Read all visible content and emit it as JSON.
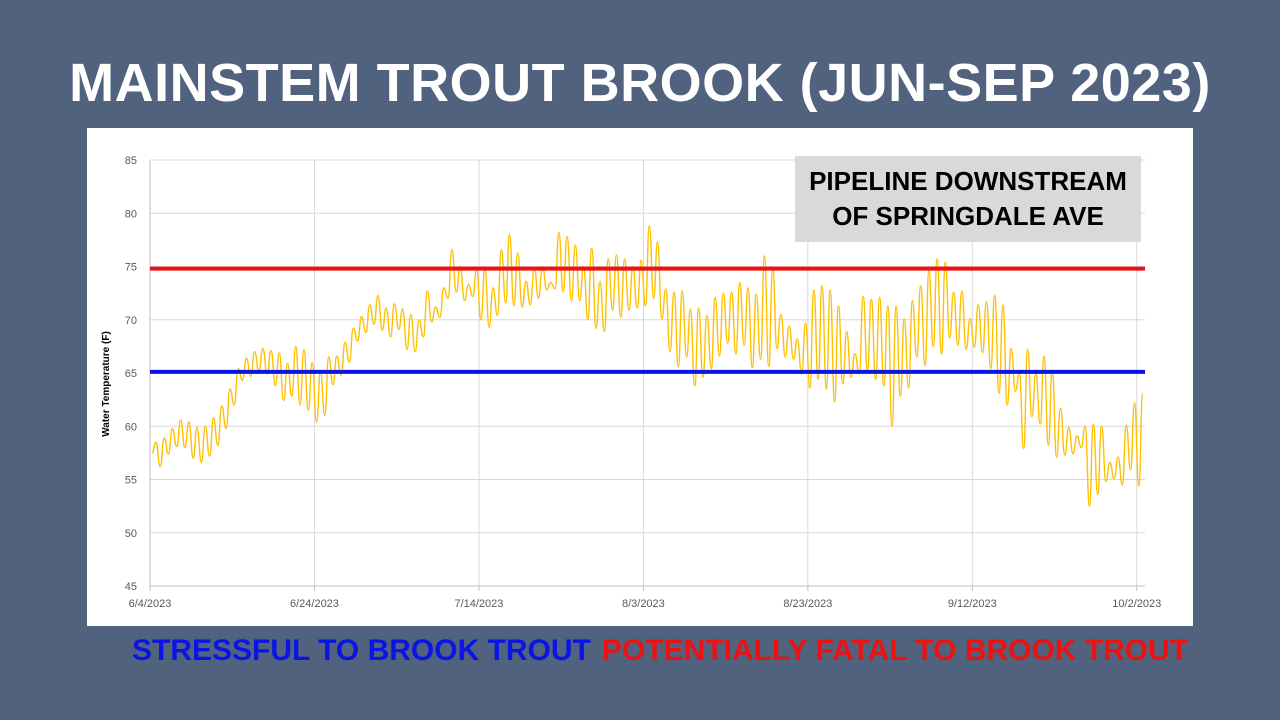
{
  "slide": {
    "title": "MAINSTEM TROUT BROOK (JUN-SEP 2023)",
    "site_label_line1": "PIPELINE DOWNSTREAM",
    "site_label_line2": "OF SPRINGDALE AVE",
    "legend_stressful": "STRESSFUL TO BROOK TROUT",
    "legend_fatal": "POTENTIALLY FATAL TO BROOK TROUT"
  },
  "colors": {
    "background": "#50627d",
    "series": "#ffc000",
    "stress_line": "#0a14e6",
    "fatal_line": "#ee1111",
    "grid": "#d9d9d9"
  },
  "chart_data": {
    "type": "line",
    "title": "",
    "xlabel": "",
    "ylabel": "Water Temperature (F)",
    "ylim": [
      45,
      85
    ],
    "yticks": [
      45,
      50,
      55,
      60,
      65,
      70,
      75,
      80,
      85
    ],
    "x_range": [
      "6/4/2023",
      "10/3/2023"
    ],
    "xticks": [
      "6/4/2023",
      "6/24/2023",
      "7/14/2023",
      "8/3/2023",
      "8/23/2023",
      "9/12/2023",
      "10/2/2023"
    ],
    "grid": true,
    "thresholds": [
      {
        "name": "STRESSFUL TO BROOK TROUT",
        "value": 65.1,
        "color": "#0a14e6"
      },
      {
        "name": "POTENTIALLY FATAL TO BROOK TROUT",
        "value": 74.8,
        "color": "#ee1111"
      }
    ],
    "series": [
      {
        "color": "#ffc000",
        "note_daily": "daily [min, max] water temperature",
        "x": [
          "6/4/2023",
          "6/5/2023",
          "6/6/2023",
          "6/7/2023",
          "6/8/2023",
          "6/9/2023",
          "6/10/2023",
          "6/11/2023",
          "6/12/2023",
          "6/13/2023",
          "6/14/2023",
          "6/15/2023",
          "6/16/2023",
          "6/17/2023",
          "6/18/2023",
          "6/19/2023",
          "6/20/2023",
          "6/21/2023",
          "6/22/2023",
          "6/23/2023",
          "6/24/2023",
          "6/25/2023",
          "6/26/2023",
          "6/27/2023",
          "6/28/2023",
          "6/29/2023",
          "6/30/2023",
          "7/1/2023",
          "7/2/2023",
          "7/3/2023",
          "7/4/2023",
          "7/5/2023",
          "7/6/2023",
          "7/7/2023",
          "7/8/2023",
          "7/9/2023",
          "7/10/2023",
          "7/11/2023",
          "7/12/2023",
          "7/13/2023",
          "7/14/2023",
          "7/15/2023",
          "7/16/2023",
          "7/17/2023",
          "7/18/2023",
          "7/19/2023",
          "7/20/2023",
          "7/21/2023",
          "7/22/2023",
          "7/23/2023",
          "7/24/2023",
          "7/25/2023",
          "7/26/2023",
          "7/27/2023",
          "7/28/2023",
          "7/29/2023",
          "7/30/2023",
          "7/31/2023",
          "8/1/2023",
          "8/2/2023",
          "8/3/2023",
          "8/4/2023",
          "8/5/2023",
          "8/6/2023",
          "8/7/2023",
          "8/8/2023",
          "8/9/2023",
          "8/10/2023",
          "8/11/2023",
          "8/12/2023",
          "8/13/2023",
          "8/14/2023",
          "8/15/2023",
          "8/16/2023",
          "8/17/2023",
          "8/18/2023",
          "8/19/2023",
          "8/20/2023",
          "8/21/2023",
          "8/22/2023",
          "8/23/2023",
          "8/24/2023",
          "8/25/2023",
          "8/26/2023",
          "8/27/2023",
          "8/28/2023",
          "8/29/2023",
          "8/30/2023",
          "8/31/2023",
          "9/1/2023",
          "9/2/2023",
          "9/3/2023",
          "9/4/2023",
          "9/5/2023",
          "9/6/2023",
          "9/7/2023",
          "9/8/2023",
          "9/9/2023",
          "9/10/2023",
          "9/11/2023",
          "9/12/2023",
          "9/13/2023",
          "9/14/2023",
          "9/15/2023",
          "9/16/2023",
          "9/17/2023",
          "9/18/2023",
          "9/19/2023",
          "9/20/2023",
          "9/21/2023",
          "9/22/2023",
          "9/23/2023",
          "9/24/2023",
          "9/25/2023",
          "9/26/2023",
          "9/27/2023",
          "9/28/2023",
          "9/29/2023",
          "9/30/2023",
          "10/1/2023",
          "10/2/2023"
        ],
        "y_minmax": [
          [
            57.5,
            58.5
          ],
          [
            56.2,
            58.9
          ],
          [
            57.4,
            59.8
          ],
          [
            58.1,
            60.6
          ],
          [
            58.0,
            60.4
          ],
          [
            57.0,
            59.9
          ],
          [
            56.6,
            60.0
          ],
          [
            57.2,
            60.8
          ],
          [
            58.2,
            61.9
          ],
          [
            59.8,
            63.5
          ],
          [
            62.0,
            65.4
          ],
          [
            64.3,
            66.4
          ],
          [
            64.7,
            67.0
          ],
          [
            65.1,
            67.3
          ],
          [
            64.9,
            67.1
          ],
          [
            63.8,
            66.9
          ],
          [
            62.4,
            65.9
          ],
          [
            62.8,
            67.5
          ],
          [
            62.0,
            67.2
          ],
          [
            61.5,
            66.0
          ],
          [
            60.4,
            65.1
          ],
          [
            61.0,
            66.5
          ],
          [
            63.9,
            66.6
          ],
          [
            64.8,
            67.9
          ],
          [
            66.0,
            69.2
          ],
          [
            68.0,
            70.3
          ],
          [
            68.8,
            71.4
          ],
          [
            69.6,
            72.3
          ],
          [
            69.0,
            71.1
          ],
          [
            68.4,
            71.5
          ],
          [
            69.1,
            71.0
          ],
          [
            67.2,
            70.5
          ],
          [
            67.0,
            70.0
          ],
          [
            68.4,
            72.7
          ],
          [
            69.8,
            71.2
          ],
          [
            70.2,
            73.0
          ],
          [
            72.0,
            76.6
          ],
          [
            72.6,
            75.0
          ],
          [
            71.8,
            73.3
          ],
          [
            72.2,
            74.7
          ],
          [
            70.0,
            74.9
          ],
          [
            69.3,
            73.0
          ],
          [
            70.4,
            76.6
          ],
          [
            71.6,
            78.0
          ],
          [
            71.3,
            76.3
          ],
          [
            71.2,
            73.6
          ],
          [
            71.4,
            74.9
          ],
          [
            72.0,
            75.0
          ],
          [
            72.8,
            73.5
          ],
          [
            72.9,
            78.2
          ],
          [
            72.6,
            77.8
          ],
          [
            71.8,
            77.0
          ],
          [
            71.8,
            75.0
          ],
          [
            70.0,
            76.7
          ],
          [
            69.2,
            73.6
          ],
          [
            68.9,
            75.7
          ],
          [
            70.9,
            76.1
          ],
          [
            70.2,
            75.7
          ],
          [
            70.9,
            75.0
          ],
          [
            71.1,
            75.6
          ],
          [
            71.3,
            78.8
          ],
          [
            72.0,
            77.3
          ],
          [
            70.1,
            72.9
          ],
          [
            67.0,
            72.6
          ],
          [
            65.6,
            72.7
          ],
          [
            66.5,
            71.0
          ],
          [
            63.8,
            71.1
          ],
          [
            64.6,
            70.4
          ],
          [
            65.4,
            72.1
          ],
          [
            66.6,
            72.5
          ],
          [
            67.8,
            72.6
          ],
          [
            66.8,
            73.5
          ],
          [
            67.6,
            73.0
          ],
          [
            65.5,
            72.4
          ],
          [
            66.3,
            76.0
          ],
          [
            65.6,
            74.8
          ],
          [
            67.3,
            70.5
          ],
          [
            66.5,
            69.4
          ],
          [
            66.3,
            68.2
          ],
          [
            64.9,
            69.7
          ],
          [
            63.6,
            72.8
          ],
          [
            64.4,
            73.2
          ],
          [
            63.5,
            72.8
          ],
          [
            62.3,
            71.3
          ],
          [
            64.0,
            68.9
          ],
          [
            64.6,
            66.8
          ],
          [
            64.9,
            72.2
          ],
          [
            65.3,
            71.9
          ],
          [
            64.4,
            72.1
          ],
          [
            63.8,
            71.3
          ],
          [
            60.0,
            71.3
          ],
          [
            62.8,
            70.1
          ],
          [
            63.6,
            71.8
          ],
          [
            66.5,
            73.2
          ],
          [
            65.7,
            74.6
          ],
          [
            67.5,
            75.7
          ],
          [
            66.8,
            75.4
          ],
          [
            68.3,
            72.6
          ],
          [
            67.6,
            72.7
          ],
          [
            67.2,
            70.1
          ],
          [
            67.4,
            71.4
          ],
          [
            66.9,
            71.7
          ],
          [
            65.4,
            72.3
          ],
          [
            63.1,
            71.4
          ],
          [
            62.0,
            67.3
          ],
          [
            63.3,
            65.0
          ],
          [
            57.9,
            67.2
          ],
          [
            60.9,
            65.0
          ],
          [
            60.2,
            66.6
          ],
          [
            58.2,
            65.3
          ],
          [
            57.1,
            61.7
          ],
          [
            57.3,
            59.9
          ],
          [
            57.4,
            59.1
          ],
          [
            58.0,
            60.0
          ],
          [
            52.5,
            60.2
          ],
          [
            53.6,
            60.0
          ],
          [
            54.8,
            56.6
          ],
          [
            55.1,
            57.1
          ],
          [
            54.5,
            60.1
          ],
          [
            55.9,
            62.2
          ],
          [
            54.4,
            63.1
          ]
        ]
      }
    ]
  }
}
